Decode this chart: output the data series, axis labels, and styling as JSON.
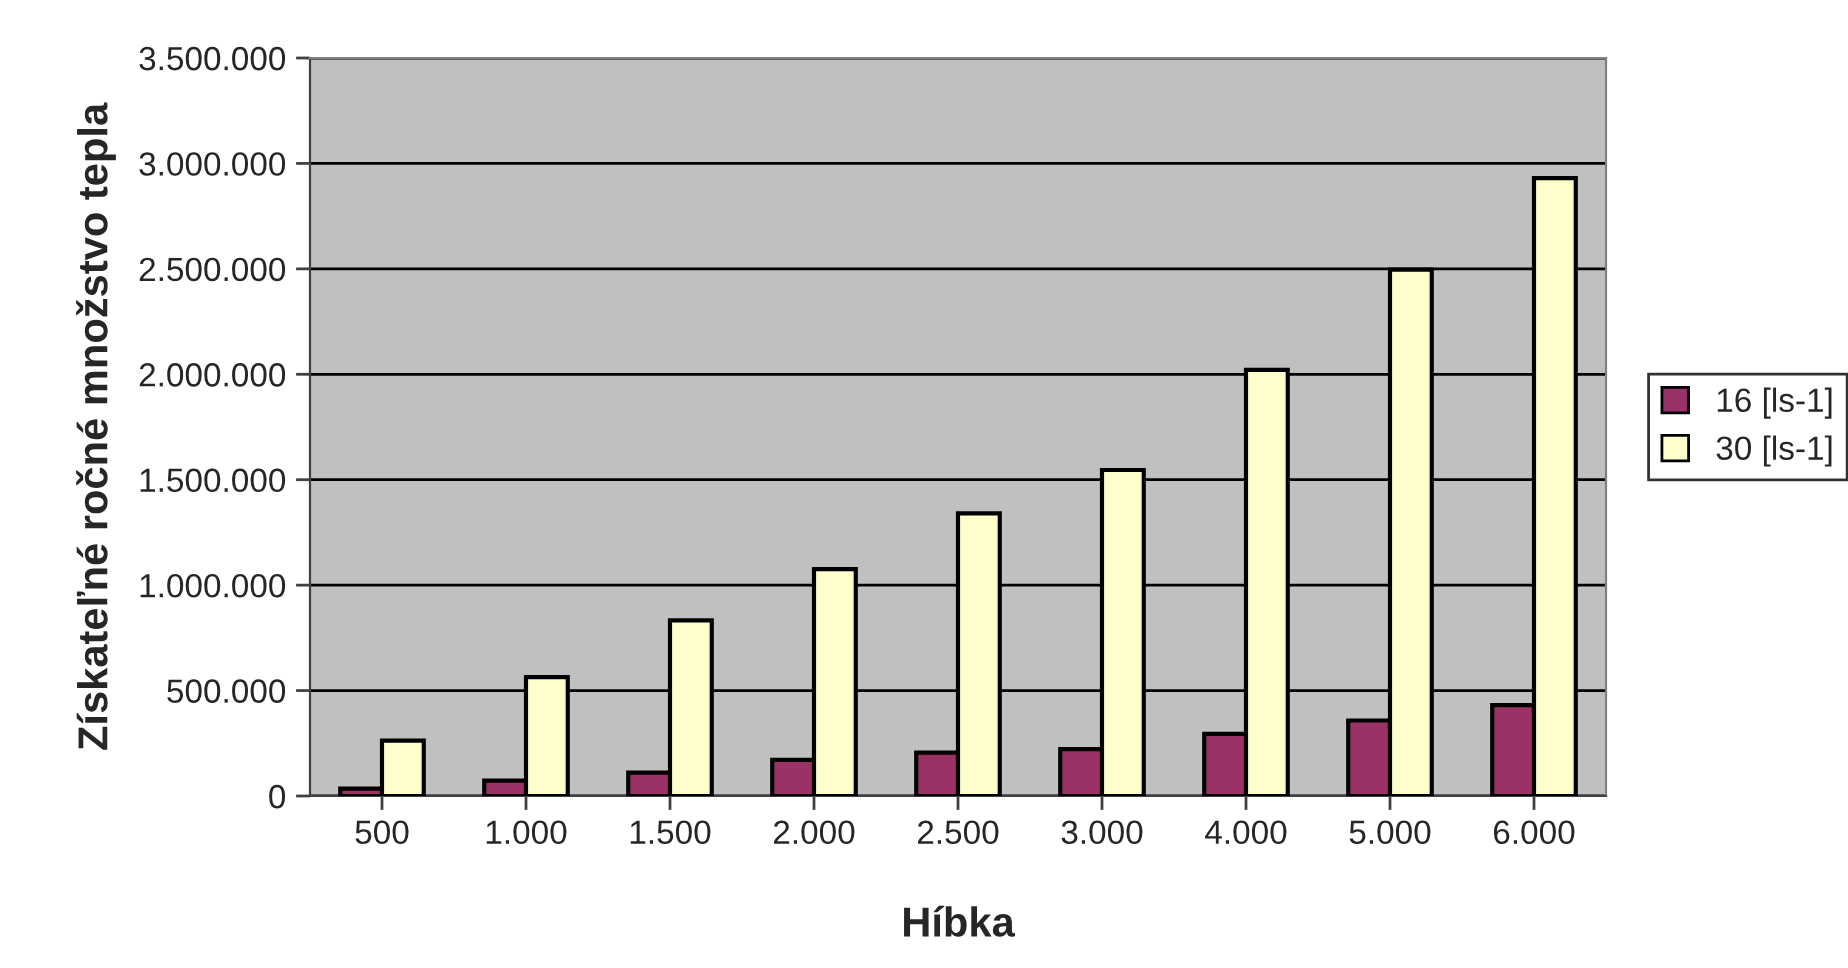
{
  "chart_data": {
    "type": "bar",
    "xlabel": "Híbka",
    "ylabel": "Získateľné ročné množstvo tepla",
    "categories": [
      "500",
      "1.000",
      "1.500",
      "2.000",
      "2.500",
      "3.000",
      "4.000",
      "5.000",
      "6.000"
    ],
    "series": [
      {
        "name": "16 [ls-1]",
        "color": "#993366",
        "values": [
          35000,
          73000,
          111000,
          171000,
          206000,
          222000,
          295000,
          358000,
          431000
        ]
      },
      {
        "name": "30 [ls-1]",
        "color": "#ffffcc",
        "values": [
          263000,
          564000,
          833000,
          1076000,
          1340000,
          1546000,
          2021000,
          2496000,
          2930000
        ]
      }
    ],
    "ylim": [
      0,
      3500000
    ],
    "yticks": [
      {
        "value": 0,
        "label": "0"
      },
      {
        "value": 500000,
        "label": "500.000"
      },
      {
        "value": 1000000,
        "label": "1.000.000"
      },
      {
        "value": 1500000,
        "label": "1.500.000"
      },
      {
        "value": 2000000,
        "label": "2.000.000"
      },
      {
        "value": 2500000,
        "label": "2.500.000"
      },
      {
        "value": 3000000,
        "label": "3.000.000"
      },
      {
        "value": 3500000,
        "label": "3.500.000"
      }
    ],
    "grid": "y",
    "legend": "right"
  }
}
